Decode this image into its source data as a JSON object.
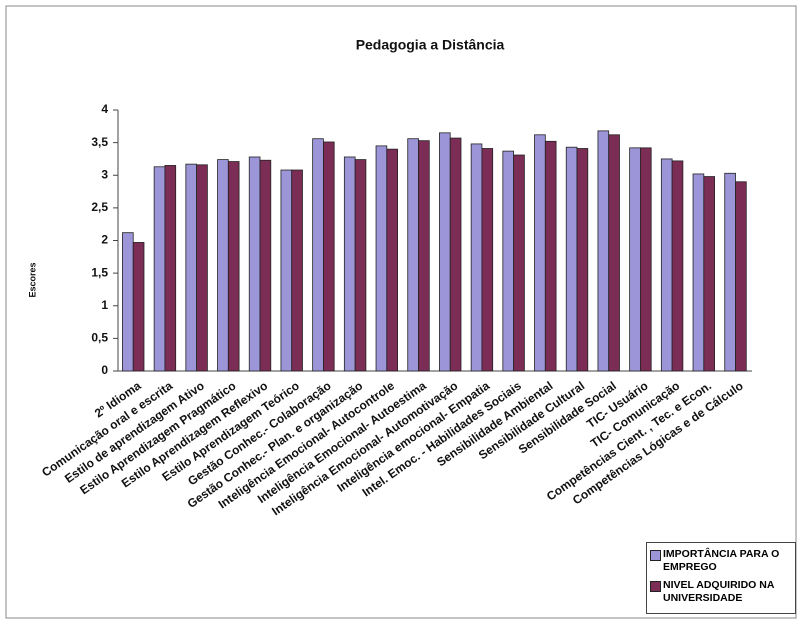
{
  "chart_data": {
    "type": "bar",
    "title": "Pedagogia a Distância",
    "ylabel": "Escores",
    "categories": [
      "2º Idioma",
      "Comunicação oral e escrita",
      "Estilo de aprendizagem Ativo",
      "Estilo Aprendizagem Pragmático",
      "Estilo Aprendizagem Reflexivo",
      "Estilo Aprendizagem Teórico",
      "Gestão Conhec.- Colaboração",
      "Gestão Conhec.- Plan. e organização",
      "Inteligência Emocional- Autocontrole",
      "Inteligência Emocional- Autoestima",
      "Inteligência Emocional- Automotivação",
      "Inteligência emocional- Empatia",
      "Intel. Emoc. - Habilidades Sociais",
      "Sensibilidade Ambiental",
      "Sensibilidade Cultural",
      "Sensibilidade Social",
      "TIC- Usuário",
      "TIC- Comunicação",
      "Competências Cient. , Tec. e Econ.",
      "Competências Lógicas e de Cálculo"
    ],
    "series": [
      {
        "name": "IMPORTÂNCIA PARA O EMPREGO",
        "color": "#9c95d8",
        "values": [
          2.12,
          3.13,
          3.17,
          3.24,
          3.28,
          3.08,
          3.56,
          3.28,
          3.45,
          3.56,
          3.65,
          3.48,
          3.37,
          3.62,
          3.43,
          3.68,
          3.42,
          3.25,
          3.02,
          3.03
        ]
      },
      {
        "name": "NIVEL ADQUIRIDO NA UNIVERSIDADE",
        "color": "#7b2d56",
        "values": [
          1.97,
          3.15,
          3.16,
          3.21,
          3.23,
          3.08,
          3.51,
          3.24,
          3.4,
          3.53,
          3.57,
          3.41,
          3.31,
          3.52,
          3.41,
          3.62,
          3.42,
          3.22,
          2.98,
          2.9
        ]
      }
    ],
    "ylim": [
      0,
      4
    ],
    "yticks": [
      0,
      {
        "value": 0.5,
        "label": "0,5"
      },
      1,
      {
        "value": 1.5,
        "label": "1,5"
      },
      2,
      {
        "value": 2.5,
        "label": "2,5"
      },
      3,
      {
        "value": 3.5,
        "label": "3,5"
      },
      4
    ],
    "legend": "bottom-right"
  }
}
